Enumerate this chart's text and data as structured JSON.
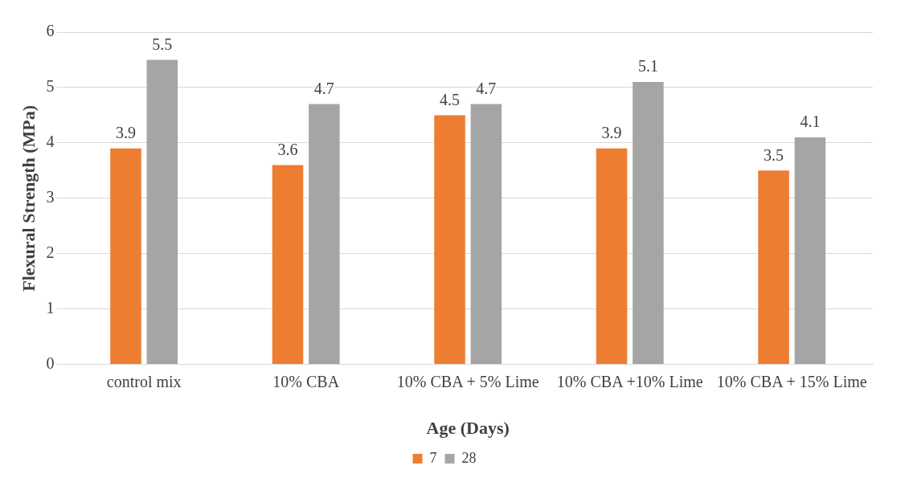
{
  "chart_data": {
    "type": "bar",
    "xlabel": "Age (Days)",
    "ylabel": "Flexural Strength (MPa)",
    "categories": [
      "control mix",
      "10% CBA",
      "10% CBA + 5% Lime",
      "10% CBA +10% Lime",
      "10% CBA + 15% Lime"
    ],
    "series": [
      {
        "name": "7",
        "color": "#ed7d31",
        "values": [
          3.9,
          3.6,
          4.5,
          3.9,
          3.5
        ]
      },
      {
        "name": "28",
        "color": "#a5a5a5",
        "values": [
          5.5,
          4.7,
          4.7,
          5.1,
          4.1
        ]
      }
    ],
    "ylim": [
      0,
      6
    ],
    "yticks": [
      0,
      1,
      2,
      3,
      4,
      5,
      6
    ],
    "grid": "y",
    "legend": "bottom",
    "data_labels": true
  }
}
